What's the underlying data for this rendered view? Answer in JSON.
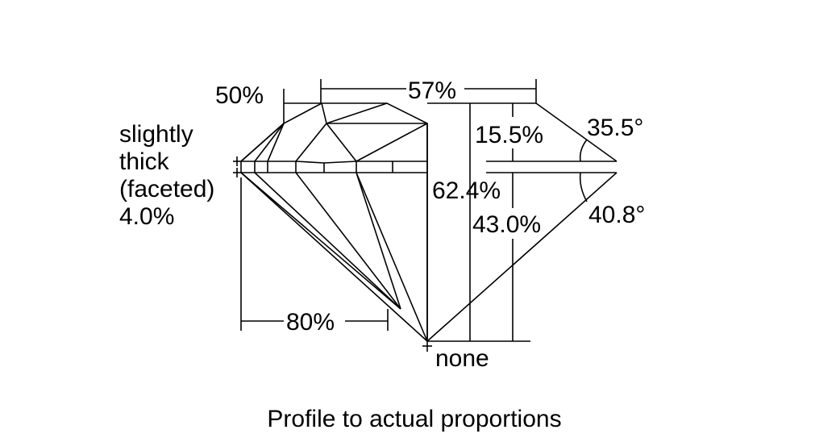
{
  "labels": {
    "table": "57%",
    "star": "50%",
    "crown_height": "15.5%",
    "crown_angle": "35.5°",
    "girdle_line1": "slightly",
    "girdle_line2": "thick",
    "girdle_line3": "(faceted)",
    "girdle_pct": "4.0%",
    "total_depth": "62.4%",
    "pavilion_depth": "43.0%",
    "pavilion_angle": "40.8°",
    "lower_half": "80%",
    "culet": "none"
  },
  "caption": "Profile to actual proportions",
  "colors": {
    "line": "#000000",
    "background": "#ffffff"
  }
}
